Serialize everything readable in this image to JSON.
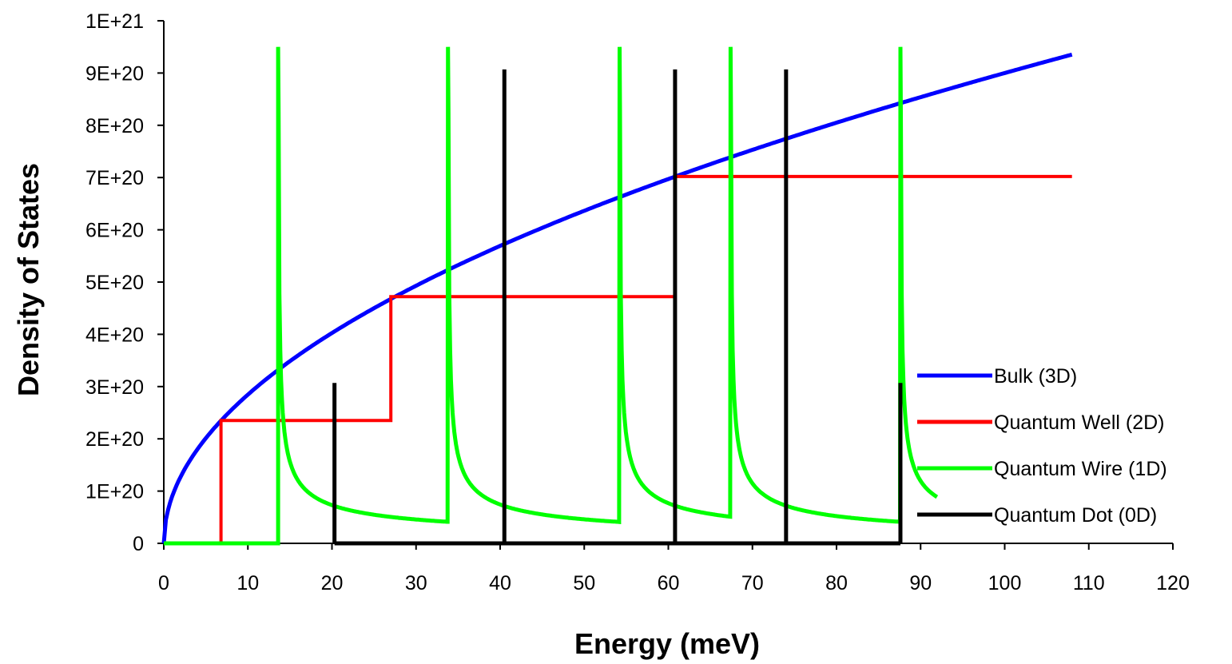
{
  "chart_data": {
    "type": "line",
    "title": "",
    "xlabel": "Energy (meV)",
    "ylabel": "Density of States",
    "xlim": [
      0,
      120
    ],
    "ylim": [
      0,
      1e+21
    ],
    "x_ticks": [
      0,
      10,
      20,
      30,
      40,
      50,
      60,
      70,
      80,
      90,
      100,
      110,
      120
    ],
    "x_tick_labels": [
      "0",
      "10",
      "20",
      "30",
      "40",
      "50",
      "60",
      "70",
      "80",
      "90",
      "100",
      "110",
      "120"
    ],
    "y_ticks": [
      0,
      1e+20,
      2e+20,
      3e+20,
      4e+20,
      5e+20,
      6e+20,
      7e+20,
      8e+20,
      9e+20,
      1e+21
    ],
    "y_tick_labels": [
      "0",
      "1E+20",
      "2E+20",
      "3E+20",
      "4E+20",
      "5E+20",
      "6E+20",
      "7E+20",
      "8E+20",
      "9E+20",
      "1E+21"
    ],
    "grid": false,
    "legend_position": "right",
    "series": [
      {
        "name": "Bulk (3D)",
        "color": "#0000ff",
        "kind": "sqrt",
        "coefficient": 9e+19,
        "x_range": [
          0,
          108
        ]
      },
      {
        "name": "Quantum Well (2D)",
        "color": "#ff0000",
        "kind": "step",
        "points": [
          [
            6.8,
            0
          ],
          [
            6.8,
            2.35e+20
          ],
          [
            27,
            2.35e+20
          ],
          [
            27,
            4.72e+20
          ],
          [
            60.8,
            4.72e+20
          ],
          [
            60.8,
            7.02e+20
          ],
          [
            108,
            7.02e+20
          ]
        ]
      },
      {
        "name": "Quantum Wire (1D)",
        "color": "#00ff00",
        "kind": "inverse_sqrt",
        "baseline_start": 0,
        "thresholds": [
          13.6,
          33.8,
          54.2,
          67.4,
          87.6
        ],
        "segment_ends": [
          33.8,
          54.2,
          67.4,
          87.6,
          92
        ],
        "coefficient": 1.85e+20,
        "peak_max": 9.5e+20
      },
      {
        "name": "Quantum Dot (0D)",
        "color": "#000000",
        "kind": "delta",
        "baseline": [
          20.3,
          87.6
        ],
        "spikes": [
          {
            "x": 20.3,
            "height": 3.07e+20
          },
          {
            "x": 40.5,
            "height": 9.07e+20
          },
          {
            "x": 60.8,
            "height": 9.07e+20
          },
          {
            "x": 74,
            "height": 9.07e+20
          },
          {
            "x": 87.6,
            "height": 3.07e+20
          }
        ]
      }
    ]
  }
}
